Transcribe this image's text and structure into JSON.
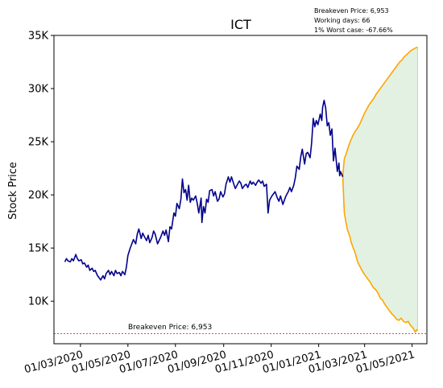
{
  "chart_data": {
    "type": "line",
    "title": "ICT",
    "ylabel": "Stock Price",
    "xlabel": "",
    "ylim": [
      6000,
      35000
    ],
    "xlim": [
      "2020-01-27",
      "2021-05-20"
    ],
    "y_ticks": [
      10000,
      15000,
      20000,
      25000,
      30000,
      35000
    ],
    "y_tick_labels": [
      "10K",
      "15K",
      "20K",
      "25K",
      "30K",
      "35K"
    ],
    "x_ticks": [
      "2020-03-01",
      "2020-05-01",
      "2020-07-01",
      "2020-09-01",
      "2020-11-01",
      "2021-01-01",
      "2021-03-01",
      "2021-05-01"
    ],
    "x_tick_labels": [
      "01/03/2020",
      "01/05/2020",
      "01/07/2020",
      "01/09/2020",
      "01/11/2020",
      "01/01/2021",
      "01/03/2021",
      "01/05/2021"
    ],
    "info_lines": [
      "Breakeven Price: 6,953",
      "Working days: 66",
      "1% Worst case: -67.66%"
    ],
    "breakeven": {
      "value": 6953,
      "label": "Breakeven Price: 6,953",
      "color": "#e03030"
    },
    "colors": {
      "history": "#00008b",
      "forecast": "#ffa500",
      "band_fill": "#d8ecd8"
    },
    "series": [
      {
        "role": "history",
        "points": [
          [
            "2020-02-10",
            13700
          ],
          [
            "2020-02-12",
            14000
          ],
          [
            "2020-02-14",
            13800
          ],
          [
            "2020-02-17",
            13700
          ],
          [
            "2020-02-19",
            14000
          ],
          [
            "2020-02-21",
            13800
          ],
          [
            "2020-02-24",
            14400
          ],
          [
            "2020-02-26",
            14000
          ],
          [
            "2020-02-28",
            13800
          ],
          [
            "2020-03-02",
            13900
          ],
          [
            "2020-03-04",
            13500
          ],
          [
            "2020-03-06",
            13600
          ],
          [
            "2020-03-09",
            13200
          ],
          [
            "2020-03-11",
            13400
          ],
          [
            "2020-03-13",
            12900
          ],
          [
            "2020-03-16",
            13100
          ],
          [
            "2020-03-18",
            12800
          ],
          [
            "2020-03-20",
            12900
          ],
          [
            "2020-03-23",
            12400
          ],
          [
            "2020-03-25",
            12200
          ],
          [
            "2020-03-27",
            12000
          ],
          [
            "2020-03-30",
            12400
          ],
          [
            "2020-04-01",
            12100
          ],
          [
            "2020-04-03",
            12600
          ],
          [
            "2020-04-06",
            12900
          ],
          [
            "2020-04-08",
            12500
          ],
          [
            "2020-04-10",
            12800
          ],
          [
            "2020-04-13",
            12400
          ],
          [
            "2020-04-15",
            12900
          ],
          [
            "2020-04-17",
            12600
          ],
          [
            "2020-04-20",
            12700
          ],
          [
            "2020-04-22",
            12400
          ],
          [
            "2020-04-24",
            12800
          ],
          [
            "2020-04-27",
            12500
          ],
          [
            "2020-04-29",
            13200
          ],
          [
            "2020-05-01",
            14300
          ],
          [
            "2020-05-04",
            15000
          ],
          [
            "2020-05-06",
            15400
          ],
          [
            "2020-05-08",
            15800
          ],
          [
            "2020-05-11",
            15400
          ],
          [
            "2020-05-13",
            16300
          ],
          [
            "2020-05-15",
            16800
          ],
          [
            "2020-05-18",
            15900
          ],
          [
            "2020-05-20",
            16400
          ],
          [
            "2020-05-22",
            16100
          ],
          [
            "2020-05-25",
            15700
          ],
          [
            "2020-05-27",
            16200
          ],
          [
            "2020-05-29",
            15500
          ],
          [
            "2020-06-01",
            16000
          ],
          [
            "2020-06-03",
            16600
          ],
          [
            "2020-06-05",
            16300
          ],
          [
            "2020-06-08",
            15400
          ],
          [
            "2020-06-10",
            15700
          ],
          [
            "2020-06-12",
            16000
          ],
          [
            "2020-06-15",
            16600
          ],
          [
            "2020-06-17",
            16200
          ],
          [
            "2020-06-19",
            16700
          ],
          [
            "2020-06-22",
            15600
          ],
          [
            "2020-06-24",
            17000
          ],
          [
            "2020-06-26",
            16800
          ],
          [
            "2020-06-29",
            18300
          ],
          [
            "2020-07-01",
            18000
          ],
          [
            "2020-07-03",
            19200
          ],
          [
            "2020-07-06",
            18700
          ],
          [
            "2020-07-08",
            19600
          ],
          [
            "2020-07-10",
            21500
          ],
          [
            "2020-07-12",
            20200
          ],
          [
            "2020-07-14",
            20500
          ],
          [
            "2020-07-16",
            19500
          ],
          [
            "2020-07-18",
            20900
          ],
          [
            "2020-07-20",
            19300
          ],
          [
            "2020-07-22",
            19700
          ],
          [
            "2020-07-24",
            19500
          ],
          [
            "2020-07-27",
            19900
          ],
          [
            "2020-07-29",
            19200
          ],
          [
            "2020-07-31",
            18300
          ],
          [
            "2020-08-03",
            19700
          ],
          [
            "2020-08-04",
            17400
          ],
          [
            "2020-08-06",
            18900
          ],
          [
            "2020-08-08",
            18300
          ],
          [
            "2020-08-10",
            19600
          ],
          [
            "2020-08-12",
            19300
          ],
          [
            "2020-08-14",
            20400
          ],
          [
            "2020-08-17",
            20500
          ],
          [
            "2020-08-19",
            19900
          ],
          [
            "2020-08-21",
            20300
          ],
          [
            "2020-08-24",
            19400
          ],
          [
            "2020-08-26",
            19600
          ],
          [
            "2020-08-28",
            20300
          ],
          [
            "2020-08-31",
            19800
          ],
          [
            "2020-09-02",
            20100
          ],
          [
            "2020-09-04",
            21000
          ],
          [
            "2020-09-07",
            21700
          ],
          [
            "2020-09-09",
            21200
          ],
          [
            "2020-09-11",
            21700
          ],
          [
            "2020-09-14",
            21000
          ],
          [
            "2020-09-16",
            20600
          ],
          [
            "2020-09-18",
            20900
          ],
          [
            "2020-09-21",
            21300
          ],
          [
            "2020-09-23",
            21100
          ],
          [
            "2020-09-25",
            20600
          ],
          [
            "2020-09-28",
            20900
          ],
          [
            "2020-09-30",
            21000
          ],
          [
            "2020-10-02",
            20700
          ],
          [
            "2020-10-05",
            21300
          ],
          [
            "2020-10-07",
            21000
          ],
          [
            "2020-10-09",
            21200
          ],
          [
            "2020-10-12",
            20900
          ],
          [
            "2020-10-14",
            21200
          ],
          [
            "2020-10-16",
            21400
          ],
          [
            "2020-10-19",
            21100
          ],
          [
            "2020-10-21",
            21300
          ],
          [
            "2020-10-23",
            20800
          ],
          [
            "2020-10-26",
            21000
          ],
          [
            "2020-10-28",
            18300
          ],
          [
            "2020-10-30",
            19500
          ],
          [
            "2020-11-02",
            19900
          ],
          [
            "2020-11-04",
            20100
          ],
          [
            "2020-11-06",
            20300
          ],
          [
            "2020-11-09",
            19700
          ],
          [
            "2020-11-11",
            19400
          ],
          [
            "2020-11-13",
            19900
          ],
          [
            "2020-11-16",
            19100
          ],
          [
            "2020-11-18",
            19500
          ],
          [
            "2020-11-20",
            19900
          ],
          [
            "2020-11-23",
            20300
          ],
          [
            "2020-11-25",
            20700
          ],
          [
            "2020-11-27",
            20300
          ],
          [
            "2020-11-30",
            20900
          ],
          [
            "2020-12-02",
            21600
          ],
          [
            "2020-12-04",
            22700
          ],
          [
            "2020-12-07",
            22400
          ],
          [
            "2020-12-09",
            23600
          ],
          [
            "2020-12-11",
            24300
          ],
          [
            "2020-12-14",
            22900
          ],
          [
            "2020-12-16",
            23900
          ],
          [
            "2020-12-18",
            24000
          ],
          [
            "2020-12-21",
            23500
          ],
          [
            "2020-12-23",
            24900
          ],
          [
            "2020-12-25",
            27200
          ],
          [
            "2020-12-27",
            26400
          ],
          [
            "2020-12-29",
            27000
          ],
          [
            "2020-12-31",
            26600
          ],
          [
            "2021-01-03",
            27600
          ],
          [
            "2021-01-05",
            27000
          ],
          [
            "2021-01-06",
            28200
          ],
          [
            "2021-01-08",
            28900
          ],
          [
            "2021-01-10",
            28200
          ],
          [
            "2021-01-12",
            26500
          ],
          [
            "2021-01-14",
            26800
          ],
          [
            "2021-01-16",
            25600
          ],
          [
            "2021-01-18",
            26200
          ],
          [
            "2021-01-20",
            23200
          ],
          [
            "2021-01-22",
            24400
          ],
          [
            "2021-01-25",
            22200
          ],
          [
            "2021-01-27",
            23000
          ],
          [
            "2021-01-28",
            21800
          ],
          [
            "2021-01-29",
            22200
          ],
          [
            "2021-02-01",
            21700
          ]
        ]
      },
      {
        "role": "forecast_upper",
        "points": [
          [
            "2021-02-01",
            21700
          ],
          [
            "2021-02-02",
            22700
          ],
          [
            "2021-02-03",
            23400
          ],
          [
            "2021-02-05",
            23800
          ],
          [
            "2021-02-08",
            24500
          ],
          [
            "2021-02-11",
            25100
          ],
          [
            "2021-02-14",
            25600
          ],
          [
            "2021-02-17",
            26000
          ],
          [
            "2021-02-20",
            26300
          ],
          [
            "2021-02-23",
            26700
          ],
          [
            "2021-02-26",
            27200
          ],
          [
            "2021-03-01",
            27700
          ],
          [
            "2021-03-04",
            28100
          ],
          [
            "2021-03-07",
            28500
          ],
          [
            "2021-03-10",
            28800
          ],
          [
            "2021-03-13",
            29100
          ],
          [
            "2021-03-16",
            29500
          ],
          [
            "2021-03-19",
            29800
          ],
          [
            "2021-03-22",
            30100
          ],
          [
            "2021-03-25",
            30400
          ],
          [
            "2021-03-28",
            30700
          ],
          [
            "2021-03-31",
            31000
          ],
          [
            "2021-04-03",
            31300
          ],
          [
            "2021-04-06",
            31600
          ],
          [
            "2021-04-09",
            31900
          ],
          [
            "2021-04-12",
            32200
          ],
          [
            "2021-04-15",
            32500
          ],
          [
            "2021-04-18",
            32700
          ],
          [
            "2021-04-21",
            33000
          ],
          [
            "2021-04-24",
            33200
          ],
          [
            "2021-04-27",
            33400
          ],
          [
            "2021-04-30",
            33600
          ],
          [
            "2021-05-05",
            33800
          ],
          [
            "2021-05-08",
            33900
          ]
        ]
      },
      {
        "role": "forecast_lower",
        "points": [
          [
            "2021-02-01",
            21700
          ],
          [
            "2021-02-02",
            19800
          ],
          [
            "2021-02-03",
            18300
          ],
          [
            "2021-02-05",
            17400
          ],
          [
            "2021-02-07",
            16700
          ],
          [
            "2021-02-10",
            16100
          ],
          [
            "2021-02-12",
            15500
          ],
          [
            "2021-02-15",
            14900
          ],
          [
            "2021-02-17",
            14500
          ],
          [
            "2021-02-20",
            13700
          ],
          [
            "2021-02-22",
            13400
          ],
          [
            "2021-02-25",
            13000
          ],
          [
            "2021-02-28",
            12600
          ],
          [
            "2021-03-03",
            12300
          ],
          [
            "2021-03-06",
            12000
          ],
          [
            "2021-03-09",
            11700
          ],
          [
            "2021-03-12",
            11300
          ],
          [
            "2021-03-15",
            11100
          ],
          [
            "2021-03-18",
            10800
          ],
          [
            "2021-03-21",
            10300
          ],
          [
            "2021-03-24",
            10100
          ],
          [
            "2021-03-27",
            9700
          ],
          [
            "2021-03-30",
            9400
          ],
          [
            "2021-04-02",
            9100
          ],
          [
            "2021-04-05",
            8800
          ],
          [
            "2021-04-08",
            8600
          ],
          [
            "2021-04-11",
            8300
          ],
          [
            "2021-04-14",
            8200
          ],
          [
            "2021-04-17",
            8400
          ],
          [
            "2021-04-20",
            8100
          ],
          [
            "2021-04-23",
            8000
          ],
          [
            "2021-04-26",
            8100
          ],
          [
            "2021-04-29",
            7700
          ],
          [
            "2021-05-02",
            7500
          ],
          [
            "2021-05-05",
            7100
          ],
          [
            "2021-05-07",
            7300
          ],
          [
            "2021-05-08",
            7200
          ]
        ]
      }
    ]
  }
}
